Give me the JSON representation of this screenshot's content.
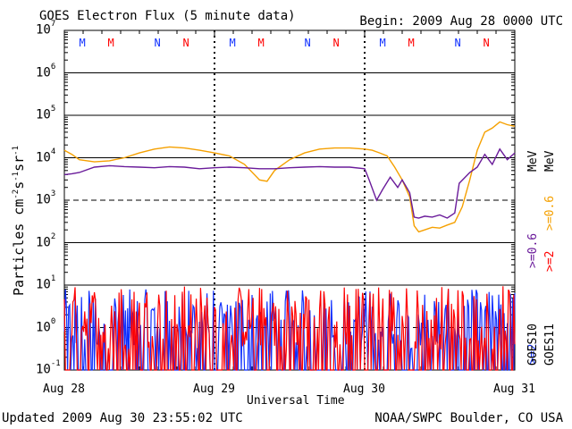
{
  "header": {
    "title": "GOES Electron Flux (5 minute data)",
    "begin": "Begin: 2009 Aug 28 0000 UTC"
  },
  "footer": {
    "updated": "Updated 2009 Aug 30 23:55:02 UTC",
    "credit": "NOAA/SWPC Boulder, CO USA"
  },
  "colors": {
    "goes10_fast": "#6a1b9a",
    "goes11_fast": "#f5a000",
    "goes10_slow": "#1030ff",
    "goes11_slow": "#ff0000",
    "marker_m_goes10": "#1030ff",
    "marker_m_goes11": "#ff0000"
  },
  "chart_data": {
    "type": "line",
    "title": "GOES Electron Flux (5 minute data)",
    "xlabel": "Universal Time",
    "ylabel": "Particles cm-2 s-1 sr-1",
    "yscale": "log",
    "ylim": [
      0.1,
      10000000
    ],
    "ytick_labels": [
      {
        "base": "10",
        "exp": "-1"
      },
      {
        "base": "10",
        "exp": "0"
      },
      {
        "base": "10",
        "exp": "1"
      },
      {
        "base": "10",
        "exp": "2"
      },
      {
        "base": "10",
        "exp": "3"
      },
      {
        "base": "10",
        "exp": "4"
      },
      {
        "base": "10",
        "exp": "5"
      },
      {
        "base": "10",
        "exp": "6"
      },
      {
        "base": "10",
        "exp": "7"
      }
    ],
    "xlim_days": [
      0,
      3
    ],
    "xtick_labels": [
      "Aug 28",
      "Aug 29",
      "Aug 30",
      "Aug 31"
    ],
    "right_labels": {
      "goes10": "GOES10",
      "goes11": "GOES11",
      "goes10_fast": ">=0.6",
      "goes11_fast": ">=0.6",
      "goes10_slow": ">=2",
      "goes11_slow": ">=2",
      "unit": "MeV"
    },
    "markers": [
      {
        "day": 0.12,
        "label": "M",
        "sat": "goes10"
      },
      {
        "day": 0.31,
        "label": "M",
        "sat": "goes11"
      },
      {
        "day": 0.62,
        "label": "N",
        "sat": "goes10"
      },
      {
        "day": 0.81,
        "label": "N",
        "sat": "goes11"
      },
      {
        "day": 1.12,
        "label": "M",
        "sat": "goes10"
      },
      {
        "day": 1.31,
        "label": "M",
        "sat": "goes11"
      },
      {
        "day": 1.62,
        "label": "N",
        "sat": "goes10"
      },
      {
        "day": 1.81,
        "label": "N",
        "sat": "goes11"
      },
      {
        "day": 2.12,
        "label": "M",
        "sat": "goes10"
      },
      {
        "day": 2.31,
        "label": "M",
        "sat": "goes11"
      },
      {
        "day": 2.62,
        "label": "N",
        "sat": "goes10"
      },
      {
        "day": 2.81,
        "label": "N",
        "sat": "goes11"
      }
    ],
    "series": [
      {
        "name": "GOES11 >=0.6 MeV",
        "color_key": "goes11_fast",
        "x": [
          0.0,
          0.05,
          0.1,
          0.2,
          0.3,
          0.4,
          0.5,
          0.6,
          0.7,
          0.8,
          0.9,
          1.0,
          1.1,
          1.2,
          1.3,
          1.35,
          1.4,
          1.5,
          1.6,
          1.7,
          1.8,
          1.9,
          2.0,
          2.05,
          2.1,
          2.15,
          2.2,
          2.25,
          2.3,
          2.33,
          2.36,
          2.4,
          2.45,
          2.5,
          2.55,
          2.6,
          2.65,
          2.7,
          2.75,
          2.8,
          2.85,
          2.9,
          2.95,
          3.0
        ],
        "y": [
          15000,
          12000,
          9000,
          8000,
          8500,
          10000,
          13000,
          16000,
          18000,
          17000,
          15000,
          13000,
          11000,
          7000,
          3000,
          2800,
          5000,
          9000,
          13000,
          16000,
          17000,
          17000,
          16000,
          15000,
          13000,
          11000,
          6000,
          3000,
          1200,
          250,
          180,
          200,
          230,
          220,
          260,
          300,
          700,
          3000,
          15000,
          40000,
          50000,
          70000,
          60000,
          55000
        ]
      },
      {
        "name": "GOES10 >=0.6 MeV",
        "color_key": "goes10_fast",
        "x": [
          0.0,
          0.05,
          0.1,
          0.2,
          0.3,
          0.4,
          0.5,
          0.6,
          0.7,
          0.8,
          0.9,
          1.0,
          1.1,
          1.2,
          1.3,
          1.4,
          1.5,
          1.6,
          1.7,
          1.8,
          1.9,
          2.0,
          2.03,
          2.08,
          2.12,
          2.17,
          2.22,
          2.25,
          2.3,
          2.33,
          2.36,
          2.4,
          2.45,
          2.5,
          2.55,
          2.6,
          2.63,
          2.7,
          2.75,
          2.8,
          2.85,
          2.9,
          2.95,
          3.0
        ],
        "y": [
          4000,
          4200,
          4500,
          6000,
          6500,
          6200,
          6000,
          5800,
          6200,
          6000,
          5500,
          5800,
          6000,
          5800,
          5500,
          5500,
          5800,
          6000,
          6200,
          6000,
          6000,
          5500,
          3000,
          1000,
          1800,
          3500,
          2000,
          3000,
          1500,
          400,
          380,
          420,
          400,
          450,
          380,
          500,
          2500,
          4500,
          6000,
          12000,
          7000,
          16000,
          9000,
          13000
        ]
      }
    ],
    "noise_series": [
      {
        "name": "GOES10 >=2 MeV",
        "color_key": "goes10_slow",
        "floor": 0.1,
        "typical": [
          0.3,
          8.0
        ]
      },
      {
        "name": "GOES11 >=2 MeV",
        "color_key": "goes11_slow",
        "floor": 0.1,
        "typical": [
          0.3,
          10.0
        ]
      }
    ]
  }
}
